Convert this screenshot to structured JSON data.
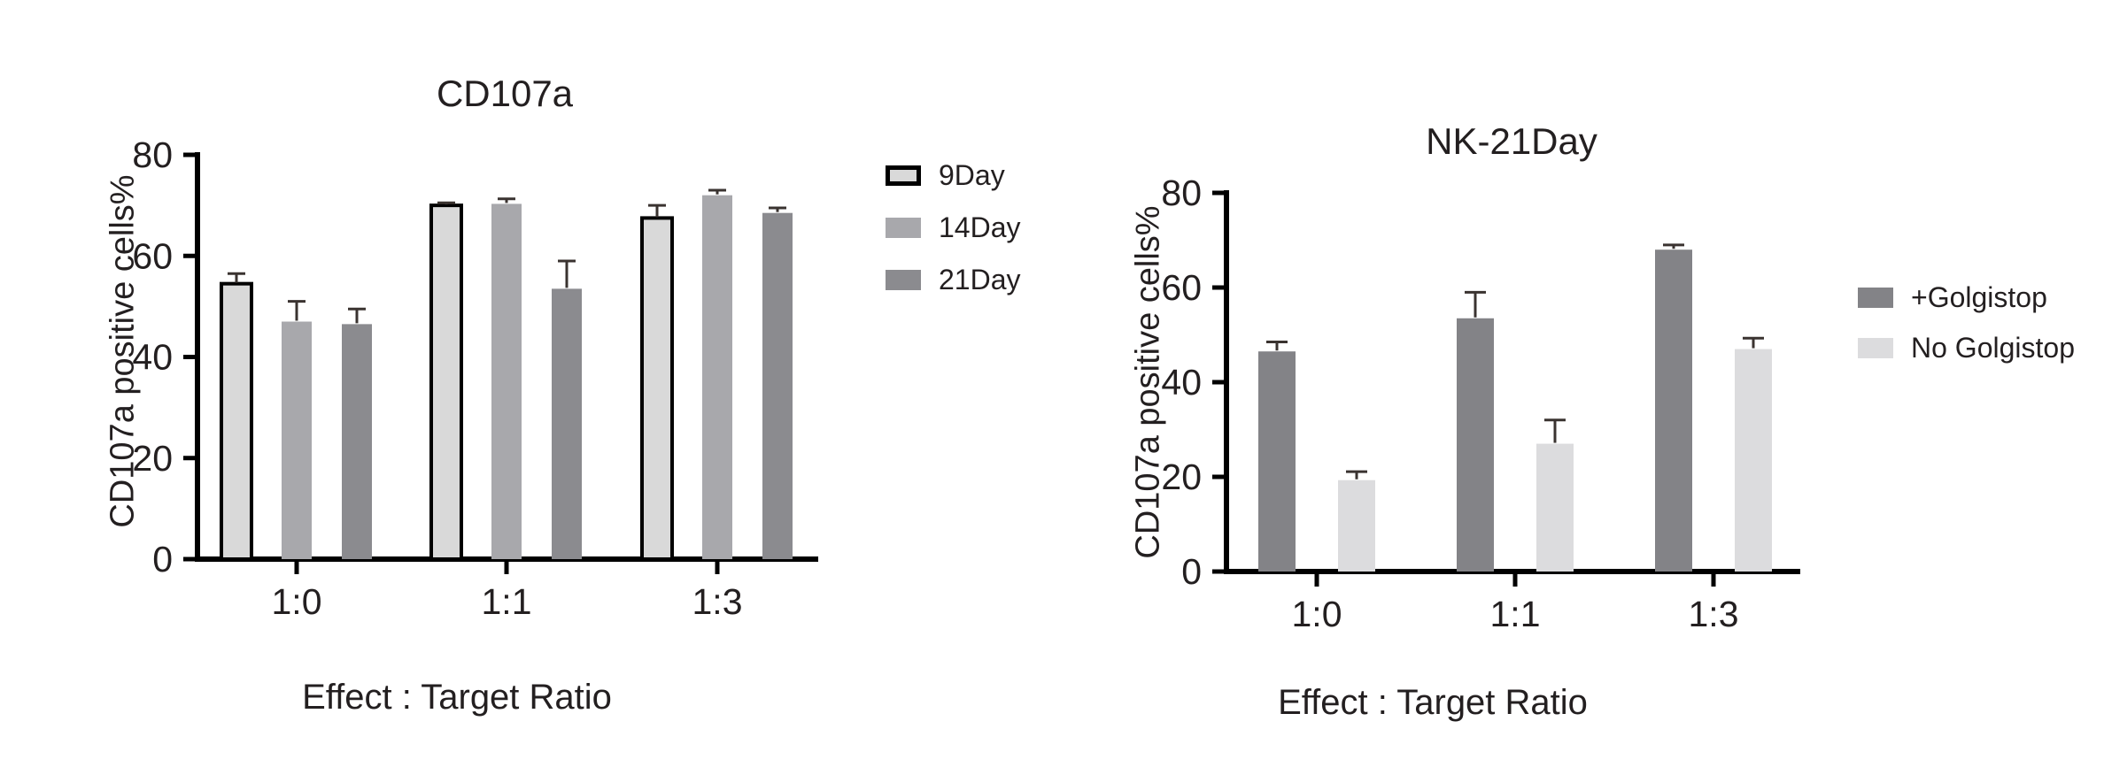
{
  "figure": {
    "background_color": "#ffffff",
    "text_color": "#231f20",
    "axis_color": "#000000",
    "error_bar_color": "#3a3330"
  },
  "chart_data": [
    {
      "type": "bar",
      "title": "CD107a",
      "xlabel": "Effect : Target Ratio",
      "ylabel": "CD107a positive cells%",
      "categories": [
        "1:0",
        "1:1",
        "1:3"
      ],
      "series": [
        {
          "name": "9Day",
          "color": "#d9d9d9",
          "border": "#000000",
          "values": [
            54.5,
            70.0,
            67.5
          ],
          "errors": [
            2.0,
            0.5,
            2.5
          ]
        },
        {
          "name": "14Day",
          "color": "#a8a8ac",
          "values": [
            47.0,
            70.3,
            72.0
          ],
          "errors": [
            4.0,
            1.0,
            1.0
          ]
        },
        {
          "name": "21Day",
          "color": "#8b8b8f",
          "values": [
            46.5,
            53.5,
            68.5
          ],
          "errors": [
            3.0,
            5.5,
            1.0
          ]
        }
      ],
      "ylim": [
        0,
        80
      ],
      "yticks": [
        0,
        20,
        40,
        60,
        80
      ],
      "grid": false,
      "legend_position": "right-top",
      "error_bars": "upper-only"
    },
    {
      "type": "bar",
      "title": "NK-21Day",
      "xlabel": "Effect : Target Ratio",
      "ylabel": "CD107a positive cells%",
      "categories": [
        "1:0",
        "1:1",
        "1:3"
      ],
      "series": [
        {
          "name": "+Golgistop",
          "color": "#838387",
          "values": [
            46.5,
            53.5,
            68.0
          ],
          "errors": [
            2.0,
            5.5,
            1.0
          ]
        },
        {
          "name": "No Golgistop",
          "color": "#dcdcde",
          "values": [
            19.3,
            27.0,
            47.0
          ],
          "errors": [
            1.8,
            5.0,
            2.3
          ]
        }
      ],
      "ylim": [
        0,
        80
      ],
      "yticks": [
        0,
        20,
        40,
        60,
        80
      ],
      "grid": false,
      "legend_position": "right-middle",
      "error_bars": "upper-only"
    }
  ]
}
